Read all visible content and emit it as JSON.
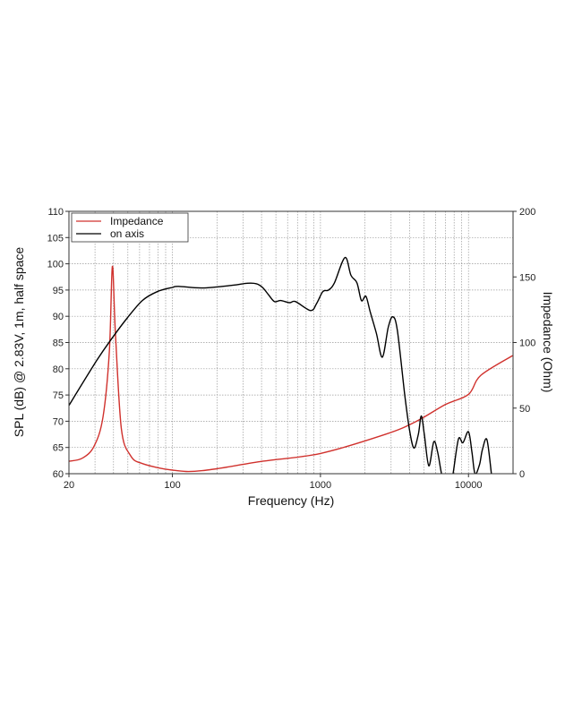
{
  "chart_data": {
    "type": "line",
    "xlabel": "Frequency (Hz)",
    "ylabel": "SPL (dB) @ 2.83V, 1m, half space",
    "y2label": "Impedance (Ohm)",
    "xscale": "log",
    "xlim": [
      20,
      20000
    ],
    "ylim": [
      60,
      110
    ],
    "y2lim": [
      0,
      200
    ],
    "xticks": [
      "20",
      "100",
      "1000",
      "10000"
    ],
    "yticks": [
      "60",
      "65",
      "70",
      "75",
      "80",
      "85",
      "90",
      "95",
      "100",
      "105",
      "110"
    ],
    "y2ticks": [
      "0",
      "50",
      "100",
      "150",
      "200"
    ],
    "grid": true,
    "legend_position": "top-left",
    "series": [
      {
        "name": "Impedance",
        "axis": "right",
        "color": "#d0312d",
        "x": [
          20,
          24.6,
          29.6,
          34,
          37.5,
          39.3,
          41.2,
          45.2,
          52,
          62.7,
          100,
          159,
          406,
          1000,
          2742,
          4378,
          6954,
          10000,
          12120,
          19870
        ],
        "y": [
          9.5,
          11.8,
          21,
          43.5,
          93,
          158,
          107,
          34.5,
          14,
          7.7,
          2.7,
          2.3,
          9.5,
          15.4,
          30,
          39.5,
          52.6,
          60.5,
          75,
          90
        ]
      },
      {
        "name": "on axis",
        "axis": "left",
        "color": "#000000",
        "x": [
          20,
          31,
          39.3,
          49.6,
          62.7,
          79,
          100,
          110,
          159,
          254,
          321,
          370,
          406,
          446,
          489,
          537,
          619,
          679,
          858,
          941,
          1037,
          1134,
          1244,
          1465,
          1607,
          1763,
          1891,
          2028,
          2175,
          2386,
          2618,
          2872,
          3082,
          3306,
          3715,
          3984,
          4274,
          4585,
          4800,
          5032,
          5395,
          5829,
          6188,
          6569,
          7000,
          7500,
          7870,
          8556,
          9170,
          10000,
          10560,
          11060,
          11860,
          12420,
          13310,
          14280
        ],
        "y": [
          73.0,
          81.7,
          85.9,
          89.7,
          93.0,
          94.7,
          95.5,
          95.7,
          95.4,
          95.9,
          96.3,
          96.2,
          95.5,
          94.1,
          92.8,
          93.0,
          92.6,
          92.8,
          91.1,
          92.4,
          94.7,
          95.0,
          96.4,
          101.2,
          97.8,
          96.4,
          93.0,
          93.8,
          90.7,
          86.8,
          82.2,
          87.9,
          89.9,
          87.3,
          74.9,
          68.6,
          64.9,
          67.5,
          71.0,
          67.5,
          61.5,
          66.1,
          64.1,
          60,
          57,
          57,
          60,
          66.6,
          65.9,
          68.0,
          64.1,
          60,
          61.7,
          64.6,
          66.5,
          60
        ]
      }
    ]
  }
}
